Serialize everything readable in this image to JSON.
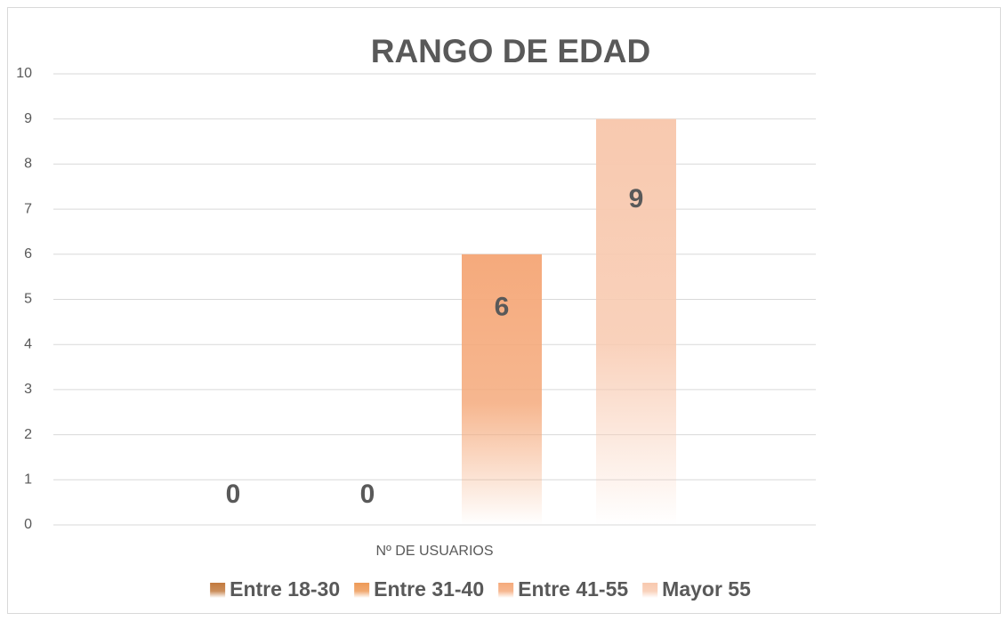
{
  "chart_data": {
    "type": "bar",
    "title": "RANGO DE EDAD",
    "categories": [
      "Nº DE USUARIOS"
    ],
    "series": [
      {
        "name": "Entre 18-30",
        "color": "#c27a3e",
        "values": [
          0
        ]
      },
      {
        "name": "Entre 31-40",
        "color": "#ee9a58",
        "values": [
          0
        ]
      },
      {
        "name": "Entre 41-55",
        "color": "#f5aa7c",
        "values": [
          6
        ]
      },
      {
        "name": "Mayor 55",
        "color": "#f8c9af",
        "values": [
          9
        ]
      }
    ],
    "ylim": [
      0,
      10
    ],
    "yticks": [
      0,
      1,
      2,
      3,
      4,
      5,
      6,
      7,
      8,
      9,
      10
    ],
    "grid": true,
    "legend": "bottom"
  }
}
